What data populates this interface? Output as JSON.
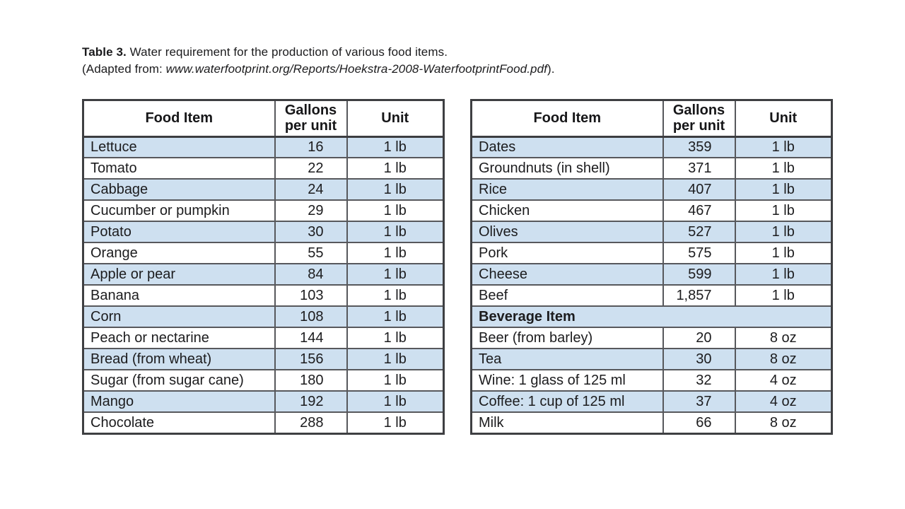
{
  "caption": {
    "label": "Table 3.",
    "title": "Water requirement for the production of various food items.",
    "source_prefix": "(Adapted from: ",
    "source_url": "www.waterfootprint.org/Reports/Hoekstra-2008-WaterfootprintFood.pdf",
    "source_suffix": ")."
  },
  "colors": {
    "row_shade": "#cee0f0",
    "border_outer": "#3e3f42",
    "border_inner": "#57585c",
    "text": "#1c1c1e"
  },
  "tables": [
    {
      "name": "food-items-left",
      "headers": [
        "Food Item",
        "Gallons per unit",
        "Unit"
      ],
      "rows": [
        {
          "item": "Lettuce",
          "gallons": "16",
          "unit": "1 lb"
        },
        {
          "item": "Tomato",
          "gallons": "22",
          "unit": "1 lb"
        },
        {
          "item": "Cabbage",
          "gallons": "24",
          "unit": "1 lb"
        },
        {
          "item": "Cucumber or pumpkin",
          "gallons": "29",
          "unit": "1 lb"
        },
        {
          "item": "Potato",
          "gallons": "30",
          "unit": "1 lb"
        },
        {
          "item": "Orange",
          "gallons": "55",
          "unit": "1 lb"
        },
        {
          "item": "Apple or pear",
          "gallons": "84",
          "unit": "1 lb"
        },
        {
          "item": "Banana",
          "gallons": "103",
          "unit": "1 lb"
        },
        {
          "item": "Corn",
          "gallons": "108",
          "unit": "1 lb"
        },
        {
          "item": "Peach or nectarine",
          "gallons": "144",
          "unit": "1 lb"
        },
        {
          "item": "Bread (from wheat)",
          "gallons": "156",
          "unit": "1 lb"
        },
        {
          "item": "Sugar (from sugar cane)",
          "gallons": "180",
          "unit": "1 lb"
        },
        {
          "item": "Mango",
          "gallons": "192",
          "unit": "1 lb"
        },
        {
          "item": "Chocolate",
          "gallons": "288",
          "unit": "1 lb"
        }
      ]
    },
    {
      "name": "food-items-right",
      "headers": [
        "Food Item",
        "Gallons per unit",
        "Unit"
      ],
      "rows": [
        {
          "item": "Dates",
          "gallons": "359",
          "unit": "1 lb"
        },
        {
          "item": "Groundnuts (in shell)",
          "gallons": "371",
          "unit": "1 lb"
        },
        {
          "item": "Rice",
          "gallons": "407",
          "unit": "1 lb"
        },
        {
          "item": "Chicken",
          "gallons": "467",
          "unit": "1 lb"
        },
        {
          "item": "Olives",
          "gallons": "527",
          "unit": "1 lb"
        },
        {
          "item": "Pork",
          "gallons": "575",
          "unit": "1 lb"
        },
        {
          "item": "Cheese",
          "gallons": "599",
          "unit": "1 lb"
        },
        {
          "item": "Beef",
          "gallons": "1,857",
          "unit": "1 lb"
        },
        {
          "section": "Beverage Item"
        },
        {
          "item": "Beer (from barley)",
          "gallons": "20",
          "unit": "8 oz"
        },
        {
          "item": "Tea",
          "gallons": "30",
          "unit": "8 oz"
        },
        {
          "item": "Wine: 1 glass of 125 ml",
          "gallons": "32",
          "unit": "4 oz"
        },
        {
          "item": "Coffee: 1 cup of 125 ml",
          "gallons": "37",
          "unit": "4 oz"
        },
        {
          "item": "Milk",
          "gallons": "66",
          "unit": "8 oz"
        }
      ]
    }
  ]
}
